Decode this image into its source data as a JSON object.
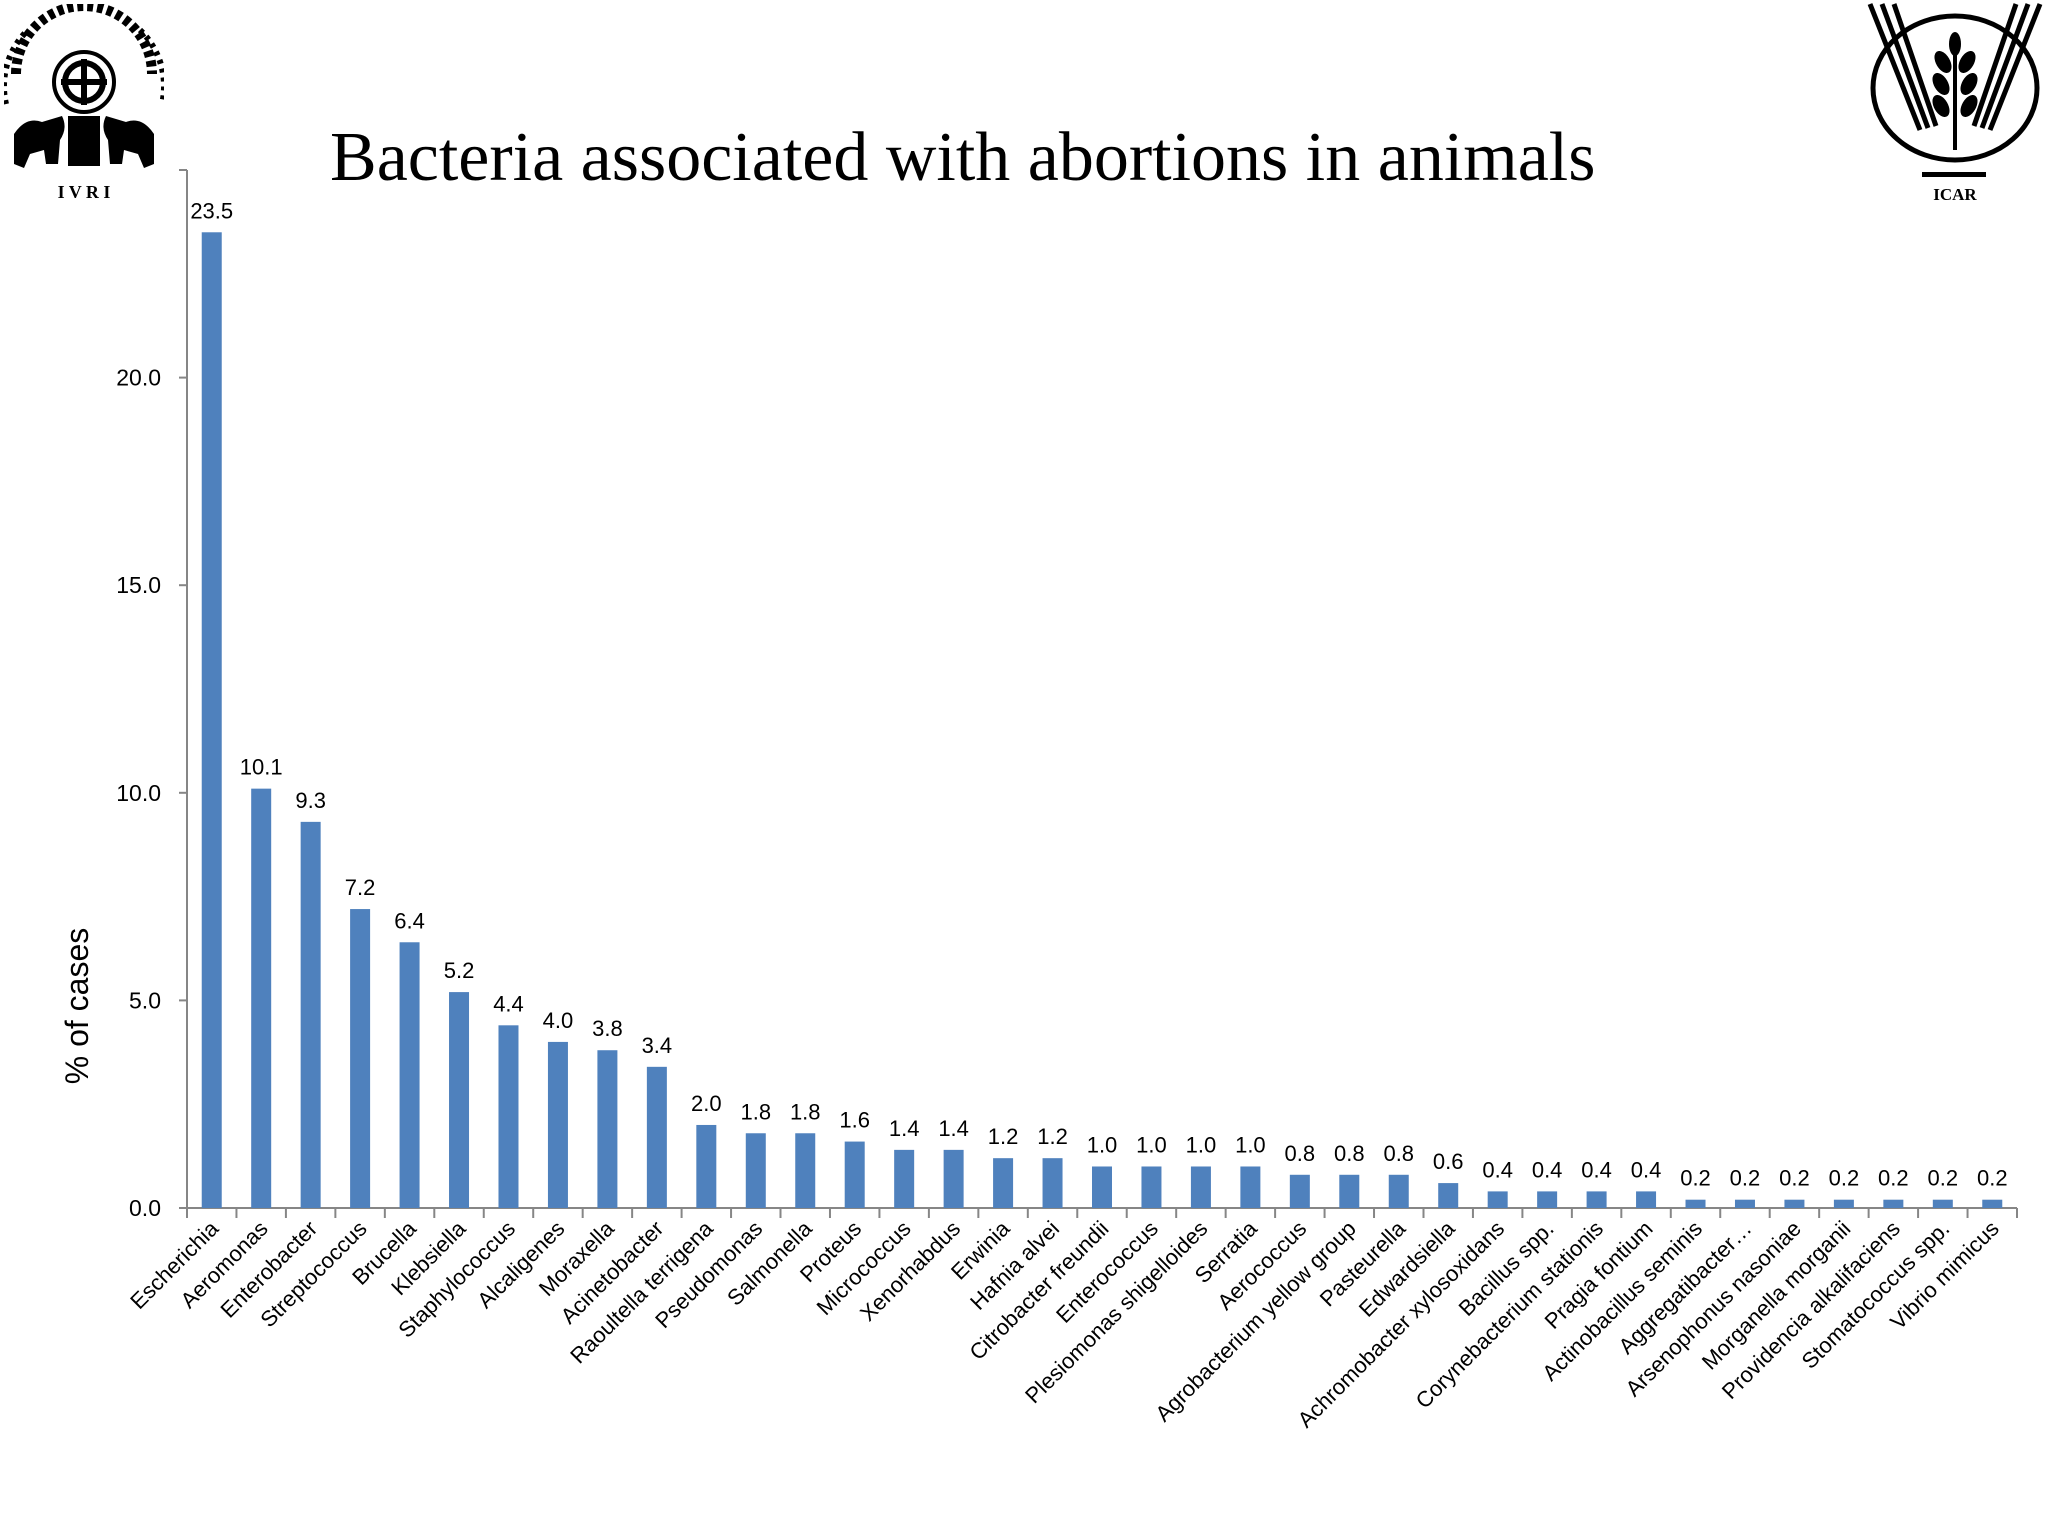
{
  "logos": {
    "left": {
      "name": "IVRI",
      "text": "I V R I"
    },
    "right": {
      "name": "ICAR",
      "text": "ICAR"
    }
  },
  "colors": {
    "bar": "#4F81BD",
    "axis": "#868686",
    "text": "#000000"
  },
  "chart_data": {
    "type": "bar",
    "title": "Bacteria associated with abortions in animals",
    "xlabel": "",
    "ylabel": "% of cases",
    "ylim": [
      0,
      25
    ],
    "yticks": [
      0,
      5,
      10,
      15,
      20
    ],
    "ytick_labels": [
      "0.0",
      "5.0",
      "10.0",
      "15.0",
      "20.0"
    ],
    "grid": false,
    "legend": "none",
    "categories": [
      "Escherichia",
      "Aeromonas",
      "Enterobacter",
      "Streptococcus",
      "Brucella",
      "Klebsiella",
      "Staphylococcus",
      "Alcaligenes",
      "Moraxella",
      "Acinetobacter",
      "Raoultella terrigena",
      "Pseudomonas",
      "Salmonella",
      "Proteus",
      "Micrococcus",
      "Xenorhabdus",
      "Erwinia",
      "Hafnia alvei",
      "Citrobacter freundii",
      "Enterococcus",
      "Plesiomonas shigelloides",
      "Serratia",
      "Aerococcus",
      "Agrobacterium  yellow group",
      "Pasteurella",
      "Edwardsiella",
      "Achromobacter xylosoxidans",
      "Bacillus spp.",
      "Corynebacterium stationis",
      "Pragia fontium",
      "Actinobacillus seminis",
      "Aggregatibacter…",
      "Arsenophonus nasoniae",
      "Morganella morganii",
      "Providencia alkalifaciens",
      "Stomatococcus spp.",
      "Vibrio mimicus"
    ],
    "values": [
      23.5,
      10.1,
      9.3,
      7.2,
      6.4,
      5.2,
      4.4,
      4.0,
      3.8,
      3.4,
      2.0,
      1.8,
      1.8,
      1.6,
      1.4,
      1.4,
      1.2,
      1.2,
      1.0,
      1.0,
      1.0,
      1.0,
      0.8,
      0.8,
      0.8,
      0.6,
      0.4,
      0.4,
      0.4,
      0.4,
      0.2,
      0.2,
      0.2,
      0.2,
      0.2,
      0.2,
      0.2
    ],
    "value_labels": [
      "23.5",
      "10.1",
      "9.3",
      "7.2",
      "6.4",
      "5.2",
      "4.4",
      "4.0",
      "3.8",
      "3.4",
      "2.0",
      "1.8",
      "1.8",
      "1.6",
      "1.4",
      "1.4",
      "1.2",
      "1.2",
      "1.0",
      "1.0",
      "1.0",
      "1.0",
      "0.8",
      "0.8",
      "0.8",
      "0.6",
      "0.4",
      "0.4",
      "0.4",
      "0.4",
      "0.2",
      "0.2",
      "0.2",
      "0.2",
      "0.2",
      "0.2",
      "0.2"
    ]
  }
}
